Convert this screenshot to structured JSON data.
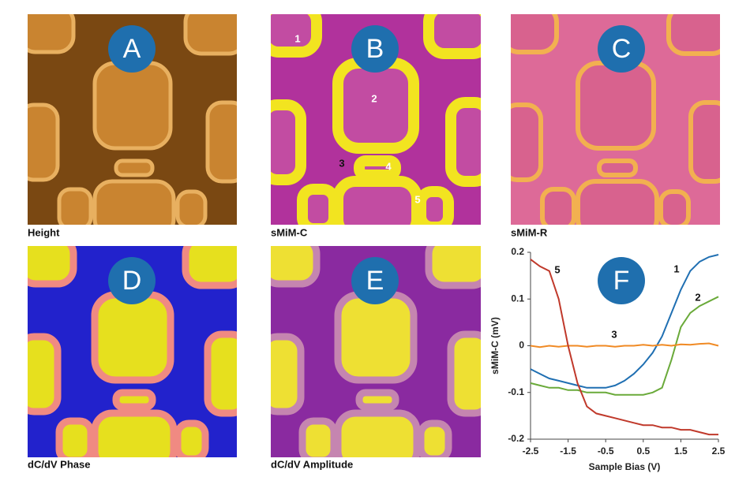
{
  "panels": [
    {
      "letter": "A",
      "caption": "Height"
    },
    {
      "letter": "B",
      "caption": "sMiM-C"
    },
    {
      "letter": "C",
      "caption": "sMiM-R"
    },
    {
      "letter": "D",
      "caption": "dC/dV Phase"
    },
    {
      "letter": "E",
      "caption": "dC/dV Amplitude"
    },
    {
      "letter": "F"
    }
  ],
  "b_markers": [
    "1",
    "2",
    "3",
    "4",
    "5"
  ],
  "chart_data": {
    "type": "line",
    "xlabel": "Sample Bias (V)",
    "ylabel": "sMiM-C (mV)",
    "x": [
      -2.5,
      -2.25,
      -2,
      -1.75,
      -1.5,
      -1.25,
      -1,
      -0.75,
      -0.5,
      -0.25,
      0,
      0.25,
      0.5,
      0.75,
      1,
      1.25,
      1.5,
      1.75,
      2,
      2.25,
      2.5
    ],
    "xlim": [
      -2.5,
      2.5
    ],
    "xticks": [
      -2.5,
      -1.5,
      -0.5,
      0.5,
      1.5,
      2.5
    ],
    "ylim": [
      -0.2,
      0.2
    ],
    "yticks": [
      -0.2,
      -0.1,
      0,
      0.1,
      0.2
    ],
    "series": [
      {
        "name": "1",
        "color": "#1f6fb2",
        "values": [
          -0.05,
          -0.06,
          -0.07,
          -0.075,
          -0.08,
          -0.085,
          -0.09,
          -0.09,
          -0.09,
          -0.085,
          -0.075,
          -0.06,
          -0.04,
          -0.015,
          0.02,
          0.07,
          0.12,
          0.16,
          0.18,
          0.19,
          0.195
        ]
      },
      {
        "name": "2",
        "color": "#6aaa3a",
        "values": [
          -0.08,
          -0.085,
          -0.09,
          -0.09,
          -0.095,
          -0.095,
          -0.1,
          -0.1,
          -0.1,
          -0.105,
          -0.105,
          -0.105,
          -0.105,
          -0.1,
          -0.09,
          -0.03,
          0.04,
          0.07,
          0.085,
          0.095,
          0.105
        ]
      },
      {
        "name": "3",
        "color": "#f08a24",
        "values": [
          0,
          -0.003,
          0,
          -0.002,
          0,
          0,
          -0.002,
          0,
          0,
          -0.002,
          0,
          0,
          0.002,
          0,
          0.002,
          0,
          0.003,
          0.002,
          0.004,
          0.005,
          0
        ]
      },
      {
        "name": "5",
        "color": "#c0392b",
        "values": [
          0.185,
          0.17,
          0.16,
          0.1,
          0,
          -0.08,
          -0.13,
          -0.145,
          -0.15,
          -0.155,
          -0.16,
          -0.165,
          -0.17,
          -0.17,
          -0.175,
          -0.175,
          -0.18,
          -0.18,
          -0.185,
          -0.19,
          -0.19
        ]
      }
    ]
  }
}
